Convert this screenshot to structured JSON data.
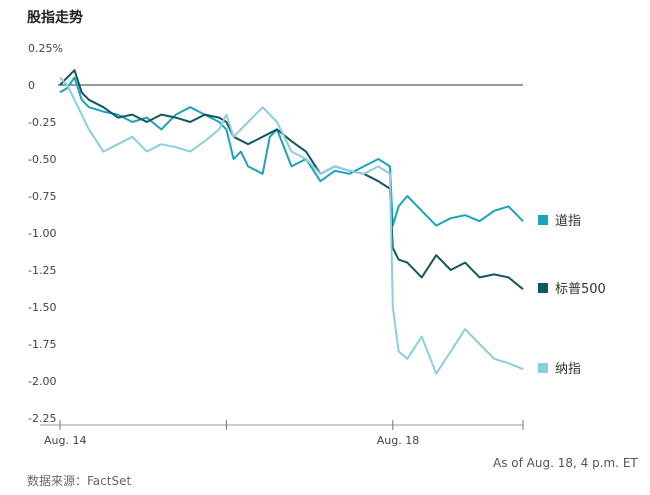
{
  "title": "股指走势",
  "source": "数据来源：FactSet",
  "as_of": "As of Aug. 18, 4 p.m. ET",
  "chart_data": {
    "type": "line",
    "title": "股指走势",
    "ylim": [
      -2.25,
      0.25
    ],
    "y_ticks": [
      0.25,
      0,
      -0.25,
      -0.5,
      -0.75,
      -1.0,
      -1.25,
      -1.5,
      -1.75,
      -2.0,
      -2.25
    ],
    "y_tick_labels": [
      "0.25%",
      "0",
      "-0.25",
      "-0.50",
      "-0.75",
      "-1.00",
      "-1.25",
      "-1.50",
      "-1.75",
      "-2.00",
      "-2.25"
    ],
    "x_range": [
      0,
      16
    ],
    "x_ticks": [
      {
        "x": 0,
        "label": "Aug. 14"
      },
      {
        "x": 5.75,
        "label": ""
      },
      {
        "x": 11.5,
        "label": "Aug. 18"
      },
      {
        "x": 16,
        "label": ""
      }
    ],
    "grid": false,
    "legend": "right",
    "series": [
      {
        "name": "道指",
        "color": "#1aa3bd",
        "points": [
          [
            0,
            -0.05
          ],
          [
            0.25,
            -0.02
          ],
          [
            0.5,
            0.05
          ],
          [
            0.75,
            -0.1
          ],
          [
            1,
            -0.15
          ],
          [
            1.5,
            -0.18
          ],
          [
            2,
            -0.2
          ],
          [
            2.5,
            -0.25
          ],
          [
            3,
            -0.22
          ],
          [
            3.5,
            -0.3
          ],
          [
            4,
            -0.2
          ],
          [
            4.5,
            -0.15
          ],
          [
            5,
            -0.2
          ],
          [
            5.5,
            -0.25
          ],
          [
            5.75,
            -0.3
          ],
          [
            6,
            -0.5
          ],
          [
            6.25,
            -0.45
          ],
          [
            6.5,
            -0.55
          ],
          [
            7,
            -0.6
          ],
          [
            7.25,
            -0.35
          ],
          [
            7.5,
            -0.3
          ],
          [
            8,
            -0.55
          ],
          [
            8.5,
            -0.5
          ],
          [
            9,
            -0.65
          ],
          [
            9.5,
            -0.58
          ],
          [
            10,
            -0.6
          ],
          [
            10.5,
            -0.55
          ],
          [
            11,
            -0.5
          ],
          [
            11.4,
            -0.55
          ],
          [
            11.5,
            -0.95
          ],
          [
            11.7,
            -0.82
          ],
          [
            12,
            -0.75
          ],
          [
            12.5,
            -0.85
          ],
          [
            13,
            -0.95
          ],
          [
            13.5,
            -0.9
          ],
          [
            14,
            -0.88
          ],
          [
            14.5,
            -0.92
          ],
          [
            15,
            -0.85
          ],
          [
            15.5,
            -0.82
          ],
          [
            16,
            -0.92
          ]
        ]
      },
      {
        "name": "标普500",
        "color": "#13585d",
        "points": [
          [
            0,
            0.0
          ],
          [
            0.25,
            0.05
          ],
          [
            0.5,
            0.1
          ],
          [
            0.75,
            -0.05
          ],
          [
            1,
            -0.1
          ],
          [
            1.5,
            -0.15
          ],
          [
            2,
            -0.22
          ],
          [
            2.5,
            -0.2
          ],
          [
            3,
            -0.25
          ],
          [
            3.5,
            -0.2
          ],
          [
            4,
            -0.22
          ],
          [
            4.5,
            -0.25
          ],
          [
            5,
            -0.2
          ],
          [
            5.5,
            -0.22
          ],
          [
            5.75,
            -0.25
          ],
          [
            6,
            -0.35
          ],
          [
            6.5,
            -0.4
          ],
          [
            7,
            -0.35
          ],
          [
            7.5,
            -0.3
          ],
          [
            8,
            -0.38
          ],
          [
            8.5,
            -0.45
          ],
          [
            9,
            -0.6
          ],
          [
            9.5,
            -0.55
          ],
          [
            10,
            -0.58
          ],
          [
            10.5,
            -0.6
          ],
          [
            11,
            -0.65
          ],
          [
            11.4,
            -0.7
          ],
          [
            11.5,
            -1.1
          ],
          [
            11.7,
            -1.18
          ],
          [
            12,
            -1.2
          ],
          [
            12.5,
            -1.3
          ],
          [
            13,
            -1.15
          ],
          [
            13.5,
            -1.25
          ],
          [
            14,
            -1.2
          ],
          [
            14.5,
            -1.3
          ],
          [
            15,
            -1.28
          ],
          [
            15.5,
            -1.3
          ],
          [
            16,
            -1.38
          ]
        ]
      },
      {
        "name": "纳指",
        "color": "#8ccedd",
        "points": [
          [
            0,
            0.05
          ],
          [
            0.25,
            0.0
          ],
          [
            0.5,
            -0.1
          ],
          [
            0.75,
            -0.2
          ],
          [
            1,
            -0.3
          ],
          [
            1.5,
            -0.45
          ],
          [
            2,
            -0.4
          ],
          [
            2.5,
            -0.35
          ],
          [
            3,
            -0.45
          ],
          [
            3.5,
            -0.4
          ],
          [
            4,
            -0.42
          ],
          [
            4.5,
            -0.45
          ],
          [
            5,
            -0.38
          ],
          [
            5.5,
            -0.3
          ],
          [
            5.75,
            -0.2
          ],
          [
            6,
            -0.35
          ],
          [
            6.5,
            -0.25
          ],
          [
            7,
            -0.15
          ],
          [
            7.5,
            -0.25
          ],
          [
            8,
            -0.45
          ],
          [
            8.5,
            -0.5
          ],
          [
            9,
            -0.6
          ],
          [
            9.5,
            -0.55
          ],
          [
            10,
            -0.58
          ],
          [
            10.5,
            -0.6
          ],
          [
            11,
            -0.55
          ],
          [
            11.4,
            -0.6
          ],
          [
            11.5,
            -1.5
          ],
          [
            11.7,
            -1.8
          ],
          [
            12,
            -1.85
          ],
          [
            12.5,
            -1.7
          ],
          [
            13,
            -1.95
          ],
          [
            13.5,
            -1.8
          ],
          [
            14,
            -1.65
          ],
          [
            14.5,
            -1.75
          ],
          [
            15,
            -1.85
          ],
          [
            15.5,
            -1.88
          ],
          [
            16,
            -1.92
          ]
        ]
      }
    ]
  }
}
